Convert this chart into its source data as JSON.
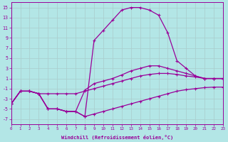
{
  "color": "#990099",
  "bg_color": "#b3e6e6",
  "grid_color": "#aacccc",
  "xlabel": "Windchill (Refroidissement éolien,°C)",
  "yticks": [
    -7,
    -5,
    -3,
    -1,
    1,
    3,
    5,
    7,
    9,
    11,
    13,
    15
  ],
  "xticks": [
    0,
    1,
    2,
    3,
    4,
    5,
    6,
    7,
    8,
    9,
    10,
    11,
    12,
    13,
    14,
    15,
    16,
    17,
    18,
    19,
    20,
    21,
    22,
    23
  ],
  "ylim": [
    -8,
    16
  ],
  "xlim": [
    0,
    23
  ],
  "y_top": [
    -4,
    -1.5,
    -1.5,
    -2,
    -5,
    -5,
    -5.5,
    -5.5,
    -6.5,
    8.5,
    10.5,
    12.5,
    14.5,
    15.0,
    15.0,
    14.5,
    13.5,
    10.0,
    4.5,
    3.0,
    1.5,
    1.0,
    1.0,
    1.0
  ],
  "y_mid1": [
    -4,
    -1.5,
    -1.5,
    -2,
    -5,
    -5,
    -5.5,
    -5.5,
    -1.3,
    0.0,
    0.5,
    1.0,
    1.7,
    2.5,
    3.0,
    3.5,
    3.5,
    3.0,
    2.5,
    2.0,
    1.5,
    1.0,
    1.0,
    1.0
  ],
  "y_mid2": [
    -4,
    -1.5,
    -1.5,
    -2,
    -2.0,
    -2.0,
    -2.0,
    -2.0,
    -1.5,
    -1.0,
    -0.5,
    0.0,
    0.5,
    1.0,
    1.5,
    1.8,
    2.0,
    2.0,
    1.8,
    1.5,
    1.3,
    1.0,
    1.0,
    1.0
  ],
  "y_bot": [
    -4,
    -1.5,
    -1.5,
    -2,
    -5,
    -5,
    -5.5,
    -5.5,
    -6.5,
    -6.0,
    -5.5,
    -5.0,
    -4.5,
    -4.0,
    -3.5,
    -3.0,
    -2.5,
    -2.0,
    -1.5,
    -1.2,
    -1.0,
    -0.8,
    -0.7,
    -0.7
  ]
}
